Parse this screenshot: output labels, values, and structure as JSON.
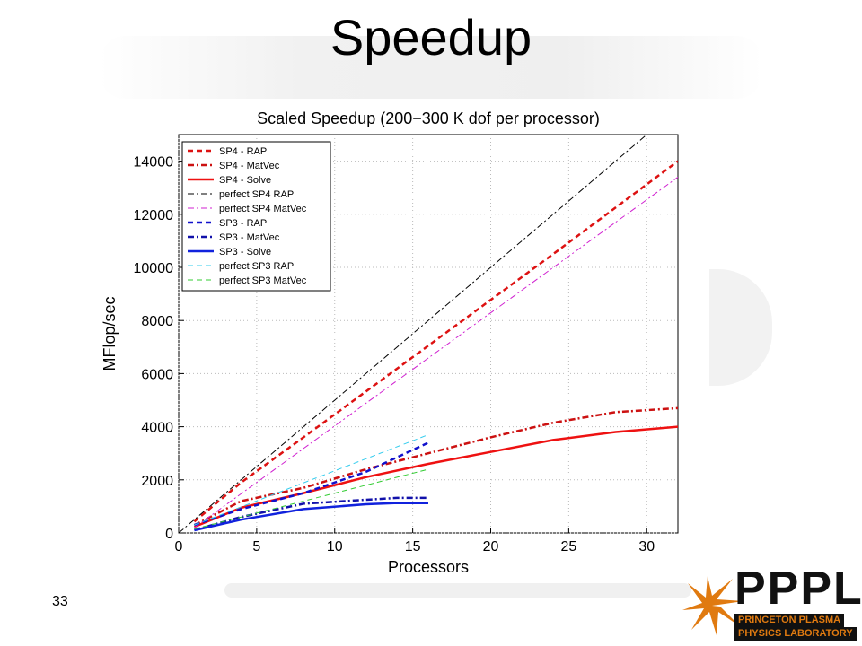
{
  "slide": {
    "title": "Speedup",
    "page_number": "33"
  },
  "logo": {
    "letters": "PPPL",
    "line1": "PRINCETON PLASMA",
    "line2": "PHYSICS LABORATORY"
  },
  "chart_data": {
    "type": "line",
    "title": "Scaled Speedup (200−300 K dof per processor)",
    "xlabel": "Processors",
    "ylabel": "MFlop/sec",
    "xlim": [
      0,
      32
    ],
    "ylim": [
      0,
      15000
    ],
    "xticks": [
      0,
      5,
      10,
      15,
      20,
      25,
      30
    ],
    "yticks": [
      0,
      2000,
      4000,
      6000,
      8000,
      10000,
      12000,
      14000
    ],
    "grid": true,
    "legend_position": "top-left",
    "series": [
      {
        "name": "SP4 - RAP",
        "color": "#dd1111",
        "style": "dashed",
        "width": 2.5,
        "x": [
          1,
          4,
          8,
          16,
          24,
          32
        ],
        "y": [
          430,
          1900,
          3600,
          7050,
          10500,
          14000
        ]
      },
      {
        "name": "SP4 - MatVec",
        "color": "#cc1111",
        "style": "dashdot",
        "width": 2.5,
        "x": [
          1,
          4,
          8,
          12,
          16,
          20,
          24,
          28,
          32
        ],
        "y": [
          290,
          1200,
          1700,
          2400,
          3000,
          3600,
          4150,
          4550,
          4700
        ]
      },
      {
        "name": "SP4 - Solve",
        "color": "#ee1111",
        "style": "solid",
        "width": 2.5,
        "x": [
          1,
          4,
          8,
          12,
          16,
          20,
          24,
          28,
          32
        ],
        "y": [
          230,
          950,
          1500,
          2100,
          2600,
          3050,
          3500,
          3800,
          4000
        ]
      },
      {
        "name": "perfect SP4 RAP",
        "color": "#000000",
        "style": "dashdot",
        "width": 1,
        "x": [
          0,
          30
        ],
        "y": [
          0,
          15000
        ]
      },
      {
        "name": "perfect SP4 MatVec",
        "color": "#d020d0",
        "style": "dashdot",
        "width": 1,
        "x": [
          1,
          32
        ],
        "y": [
          200,
          13400
        ]
      },
      {
        "name": "SP3 - RAP",
        "color": "#1111cc",
        "style": "dashed",
        "width": 2.5,
        "x": [
          1,
          4,
          8,
          12,
          16
        ],
        "y": [
          300,
          900,
          1500,
          2300,
          3400
        ]
      },
      {
        "name": "SP3 - MatVec",
        "color": "#1111aa",
        "style": "dashdot",
        "width": 2.5,
        "x": [
          1,
          4,
          8,
          12,
          14,
          16
        ],
        "y": [
          110,
          600,
          1100,
          1250,
          1320,
          1320
        ]
      },
      {
        "name": "SP3 - Solve",
        "color": "#1122dd",
        "style": "solid",
        "width": 2.5,
        "x": [
          1,
          4,
          8,
          12,
          14,
          16
        ],
        "y": [
          100,
          500,
          900,
          1080,
          1130,
          1120
        ]
      },
      {
        "name": "perfect SP3 RAP",
        "color": "#33ccee",
        "style": "dashed",
        "width": 1,
        "x": [
          1,
          16
        ],
        "y": [
          300,
          3700
        ]
      },
      {
        "name": "perfect SP3 MatVec",
        "color": "#33cc33",
        "style": "dashed",
        "width": 1,
        "x": [
          1,
          16
        ],
        "y": [
          150,
          2400
        ]
      }
    ]
  }
}
